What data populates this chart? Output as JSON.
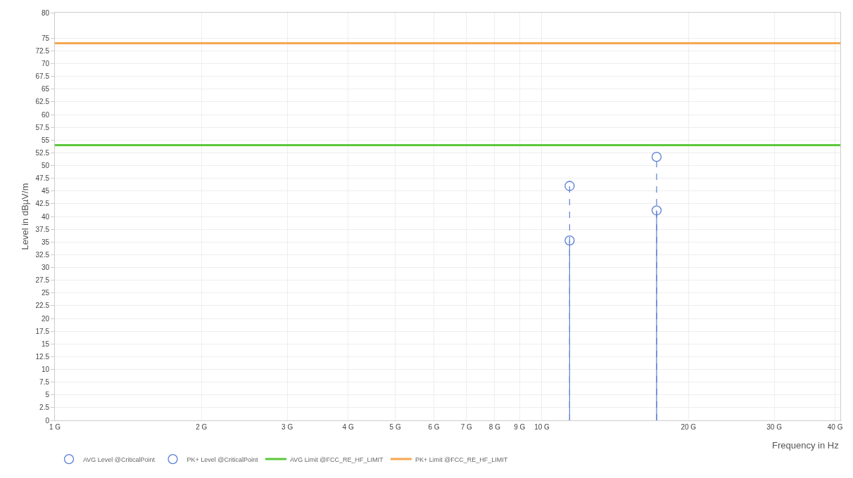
{
  "chart_data": {
    "type": "lollipop",
    "xlabel": "Frequency in Hz",
    "ylabel": "Level in dBµV/m",
    "log": "x",
    "xlim": [
      1,
      41
    ],
    "xticks": [
      {
        "value": 1,
        "label": "1 G"
      },
      {
        "value": 2,
        "label": "2 G"
      },
      {
        "value": 3,
        "label": "3 G"
      },
      {
        "value": 4,
        "label": "4 G"
      },
      {
        "value": 5,
        "label": "5 G"
      },
      {
        "value": 6,
        "label": "6 G"
      },
      {
        "value": 7,
        "label": "7 G"
      },
      {
        "value": 8,
        "label": "8 G"
      },
      {
        "value": 9,
        "label": "9 G"
      },
      {
        "value": 10,
        "label": "10 G"
      },
      {
        "value": 20,
        "label": "20 G"
      },
      {
        "value": 30,
        "label": "30 G"
      },
      {
        "value": 40,
        "label": "40 G"
      }
    ],
    "ylim": [
      0,
      80
    ],
    "yticks": [
      0,
      2.5,
      5,
      7.5,
      10,
      12.5,
      15,
      17.5,
      20,
      22.5,
      25,
      27.5,
      30,
      32.5,
      35,
      37.5,
      40,
      42.5,
      45,
      47.5,
      50,
      52.5,
      55,
      57.5,
      60,
      62.5,
      65,
      67.5,
      70,
      72.5,
      75,
      80
    ],
    "grid": true,
    "legend": "bottom",
    "series": [
      {
        "name": "PK+ Level @CriticalPoint",
        "line_style": "dashed",
        "marker": "circle",
        "color": "#5b7fd6",
        "x": [
          11.4,
          17.2
        ],
        "values": [
          46.0,
          51.7
        ]
      },
      {
        "name": "AVG Level @CriticalPoint",
        "line_style": "solid",
        "marker": "circle",
        "color": "#5b7fd6",
        "x": [
          11.4,
          17.2
        ],
        "values": [
          35.3,
          41.2
        ]
      },
      {
        "name": "AVG Limit @FCC_RE_HF_LIMIT",
        "type": "line",
        "marker": "none",
        "line_style": "solid",
        "color": "#5cc83c",
        "x": [
          1,
          41
        ],
        "values": [
          54,
          54
        ]
      },
      {
        "name": "PK+ Limit @FCC_RE_HF_LIMIT",
        "type": "line",
        "marker": "none",
        "line_style": "solid",
        "color": "#f5a650",
        "x": [
          1,
          41
        ],
        "values": [
          74,
          74
        ]
      }
    ]
  }
}
